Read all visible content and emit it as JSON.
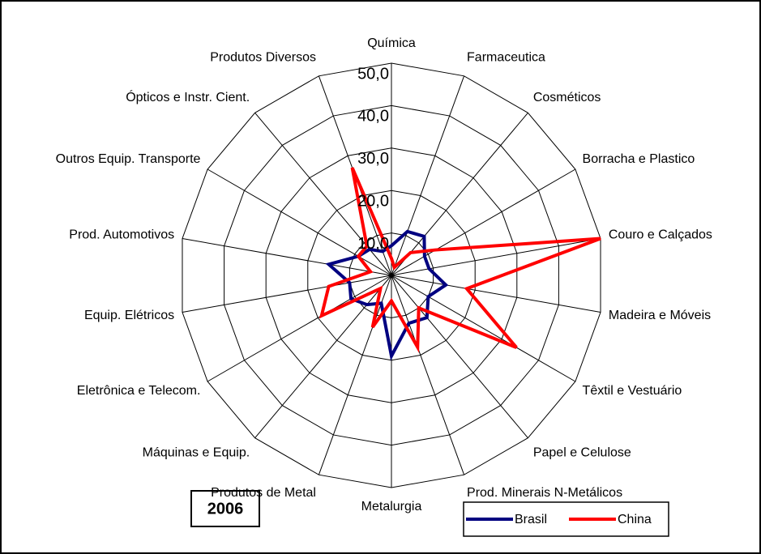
{
  "chart_data": {
    "type": "radar",
    "categories": [
      "Química",
      "Farmaceutica",
      "Cosméticos",
      "Borracha e Plastico",
      "Couro e Calçados",
      "Madeira e Móveis",
      "Têxtil e Vestuário",
      "Papel e Celulose",
      "Prod. Minerais N-Metálicos",
      "Metalurgia",
      "Produtos de Metal",
      "Máquinas e Equip.",
      "Eletrônica e Telecom.",
      "Equip. Elétricos",
      "Prod. Automotivos",
      "Outros Equip. Transporte",
      "Ópticos e Instr. Cient.",
      "Produtos Diversos"
    ],
    "series": [
      {
        "name": "Brasil",
        "color": "#000080",
        "values": [
          7,
          11,
          12,
          9,
          9,
          13,
          10,
          13,
          12,
          19,
          7,
          9,
          11,
          10,
          15,
          9,
          8,
          6
        ]
      },
      {
        "name": "China",
        "color": "#ff0000",
        "values": [
          4,
          2,
          7,
          12,
          50,
          18,
          34,
          10,
          18,
          6,
          13,
          4,
          19,
          15,
          5,
          9,
          9,
          27
        ]
      }
    ],
    "rlim": [
      0,
      50
    ],
    "rticks": [
      {
        "value": 10,
        "label": "10,0"
      },
      {
        "value": 20,
        "label": "20,0"
      },
      {
        "value": 30,
        "label": "30,0"
      },
      {
        "value": 40,
        "label": "40,0"
      },
      {
        "value": 50,
        "label": "50,0"
      }
    ],
    "annotation": "2006",
    "grid": true
  }
}
